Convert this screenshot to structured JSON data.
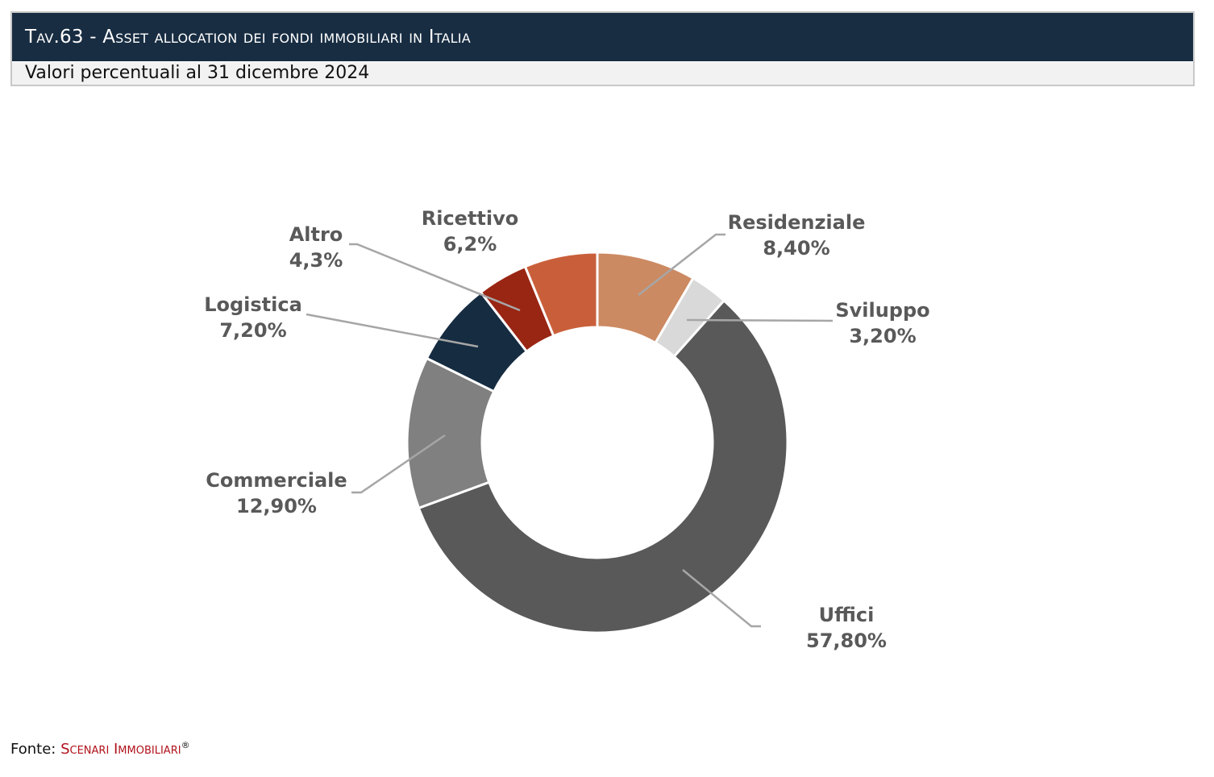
{
  "header": {
    "title": "Tav.63 - Asset allocation dei fondi immobiliari in Italia",
    "subtitle": "Valori percentuali al 31 dicembre 2024"
  },
  "chart_data": {
    "type": "pie",
    "variant": "donut",
    "title": "Asset allocation dei fondi immobiliari in Italia",
    "unit": "%",
    "start": "top, clockwise",
    "slices": [
      {
        "name": "Residenziale",
        "value": 8.4,
        "label": "8,40%",
        "color": "#cc8a62"
      },
      {
        "name": "Sviluppo",
        "value": 3.2,
        "label": "3,20%",
        "color": "#d9d9d9"
      },
      {
        "name": "Uffici",
        "value": 57.8,
        "label": "57,80%",
        "color": "#595959"
      },
      {
        "name": "Commerciale",
        "value": 12.9,
        "label": "12,90%",
        "color": "#808080"
      },
      {
        "name": "Logistica",
        "value": 7.2,
        "label": "7,20%",
        "color": "#162c41"
      },
      {
        "name": "Altro",
        "value": 4.3,
        "label": "4,3%",
        "color": "#992513"
      },
      {
        "name": "Ricettivo",
        "value": 6.2,
        "label": "6,2%",
        "color": "#c95f3a"
      }
    ]
  },
  "footer": {
    "prefix": "Fonte:",
    "source": "Scenari Immobiliari",
    "mark": "®"
  }
}
